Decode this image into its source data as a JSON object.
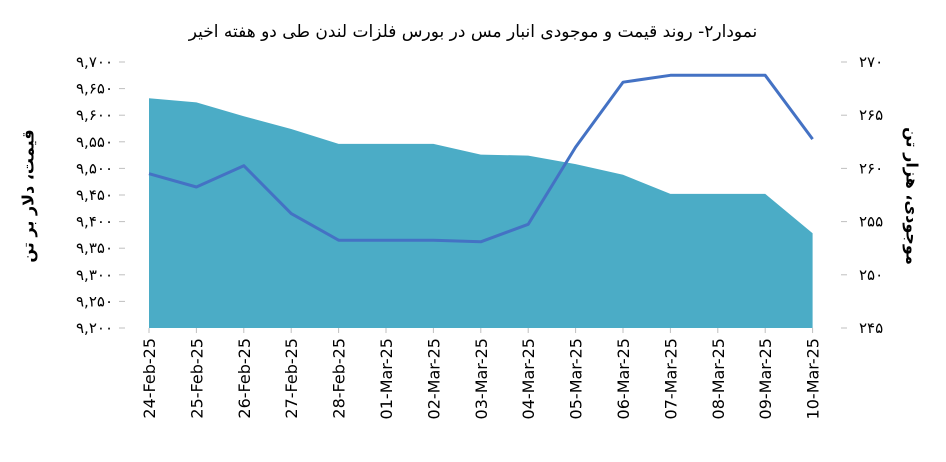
{
  "chart_data": {
    "type": "area+line",
    "title": "نمودار۲- روند قیمت و موجودی انبار مس در بورس فلزات لندن طی دو هفته اخیر",
    "ylabel_left": "قیمت، دلار بر تن",
    "ylabel_right": "موجودی، هزار تن",
    "categories": [
      "24-Feb-25",
      "25-Feb-25",
      "26-Feb-25",
      "27-Feb-25",
      "28-Feb-25",
      "01-Mar-25",
      "02-Mar-25",
      "03-Mar-25",
      "04-Mar-25",
      "05-Mar-25",
      "06-Mar-25",
      "07-Mar-25",
      "08-Mar-25",
      "09-Mar-25",
      "10-Mar-25"
    ],
    "left_axis": {
      "min": 9200,
      "max": 9700,
      "step": 50,
      "tick_labels": [
        "۹,۲۰۰",
        "۹,۲۵۰",
        "۹,۳۰۰",
        "۹,۳۵۰",
        "۹,۴۰۰",
        "۹,۴۵۰",
        "۹,۵۰۰",
        "۹,۵۵۰",
        "۹,۶۰۰",
        "۹,۶۵۰",
        "۹,۷۰۰"
      ]
    },
    "right_axis": {
      "min": 245,
      "max": 270,
      "step": 5,
      "tick_labels": [
        "۲۴۵",
        "۲۵۰",
        "۲۵۵",
        "۲۶۰",
        "۲۶۵",
        "۲۷۰"
      ]
    },
    "series": [
      {
        "type": "area",
        "axis": "right",
        "color": "#4bacc6",
        "values": [
          266.6,
          266.2,
          264.9,
          263.7,
          262.3,
          262.3,
          262.3,
          261.3,
          261.2,
          260.4,
          259.4,
          257.6,
          257.6,
          257.6,
          253.9
        ]
      },
      {
        "type": "line",
        "axis": "left",
        "color": "#4472c4",
        "values": [
          9490,
          9465,
          9505,
          9415,
          9365,
          9365,
          9365,
          9362,
          9395,
          9540,
          9662,
          9675,
          9675,
          9675,
          9555
        ]
      }
    ],
    "grid": false
  }
}
